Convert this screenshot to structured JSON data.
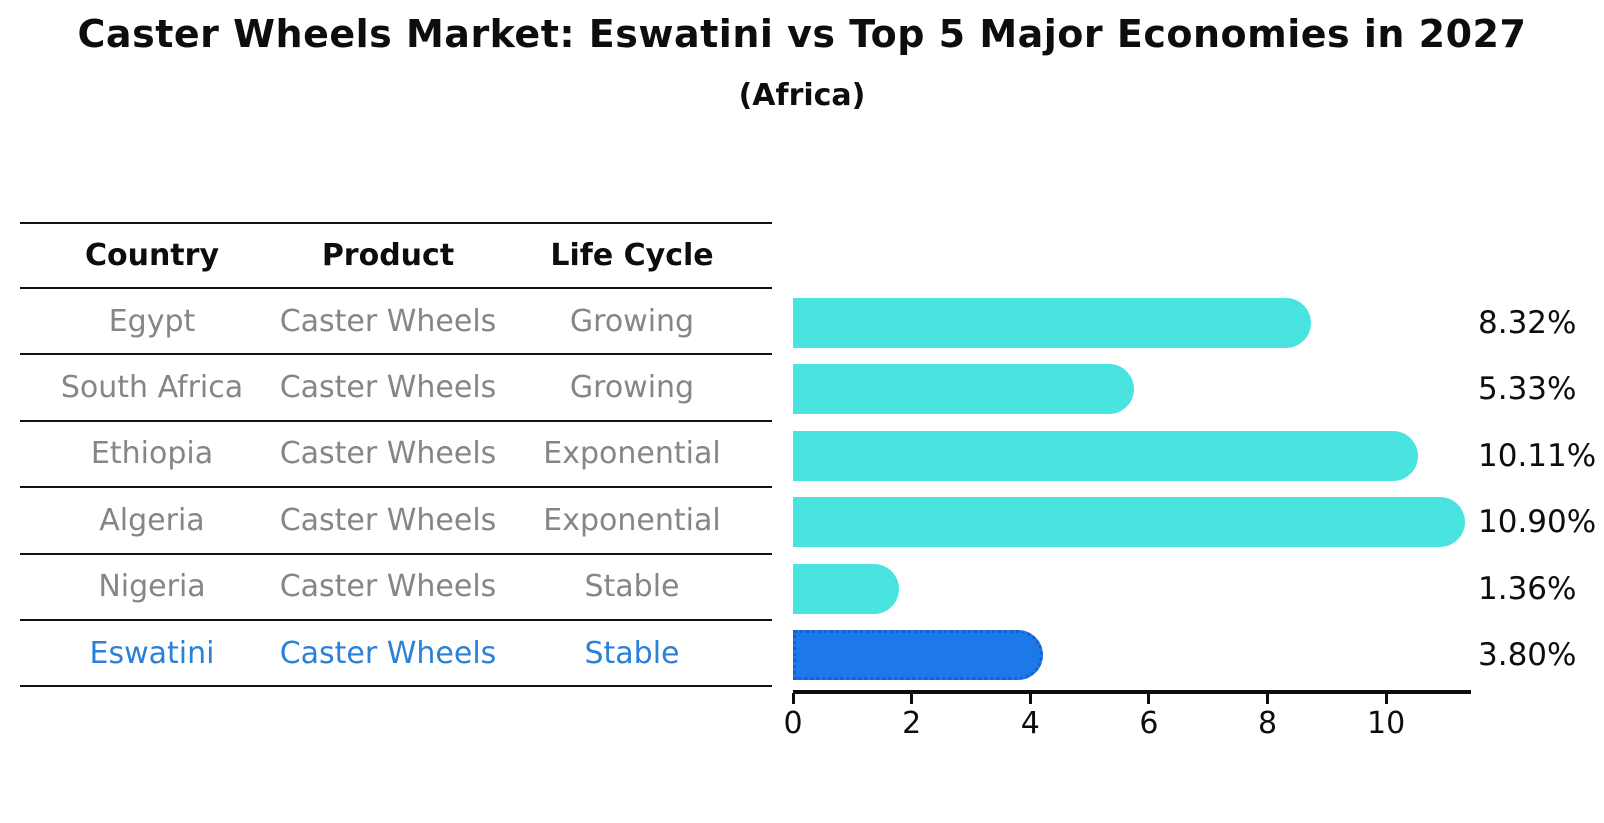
{
  "title": "Caster Wheels Market: Eswatini vs Top 5 Major Economies in 2027",
  "subtitle": "(Africa)",
  "table": {
    "columns": [
      "Country",
      "Product",
      "Life Cycle"
    ],
    "rows": [
      {
        "country": "Egypt",
        "product": "Caster Wheels",
        "life_cycle": "Growing",
        "highlight": false
      },
      {
        "country": "South Africa",
        "product": "Caster Wheels",
        "life_cycle": "Growing",
        "highlight": false
      },
      {
        "country": "Ethiopia",
        "product": "Caster Wheels",
        "life_cycle": "Exponential",
        "highlight": false
      },
      {
        "country": "Algeria",
        "product": "Caster Wheels",
        "life_cycle": "Exponential",
        "highlight": false
      },
      {
        "country": "Nigeria",
        "product": "Caster Wheels",
        "life_cycle": "Stable",
        "highlight": false
      },
      {
        "country": "Eswatini",
        "product": "Caster Wheels",
        "life_cycle": "Stable",
        "highlight": true
      }
    ]
  },
  "chart_data": {
    "type": "bar",
    "orientation": "horizontal",
    "categories": [
      "Egypt",
      "South Africa",
      "Ethiopia",
      "Algeria",
      "Nigeria",
      "Eswatini"
    ],
    "values": [
      8.32,
      5.33,
      10.11,
      10.9,
      1.36,
      3.8
    ],
    "labels": [
      "8.32%",
      "5.33%",
      "10.11%",
      "10.90%",
      "1.36%",
      "3.80%"
    ],
    "highlight_index": 5,
    "xticks": [
      0,
      2,
      4,
      6,
      8,
      10
    ],
    "xlim": [
      0,
      11.38
    ],
    "grid": false,
    "legend": false,
    "bar_color": "#4ae4e0",
    "highlight_bar_color": "#1e79e8",
    "highlight_border_color": "#155fd0",
    "highlight_text_color": "#2b80d8",
    "text_color": "#868686"
  }
}
